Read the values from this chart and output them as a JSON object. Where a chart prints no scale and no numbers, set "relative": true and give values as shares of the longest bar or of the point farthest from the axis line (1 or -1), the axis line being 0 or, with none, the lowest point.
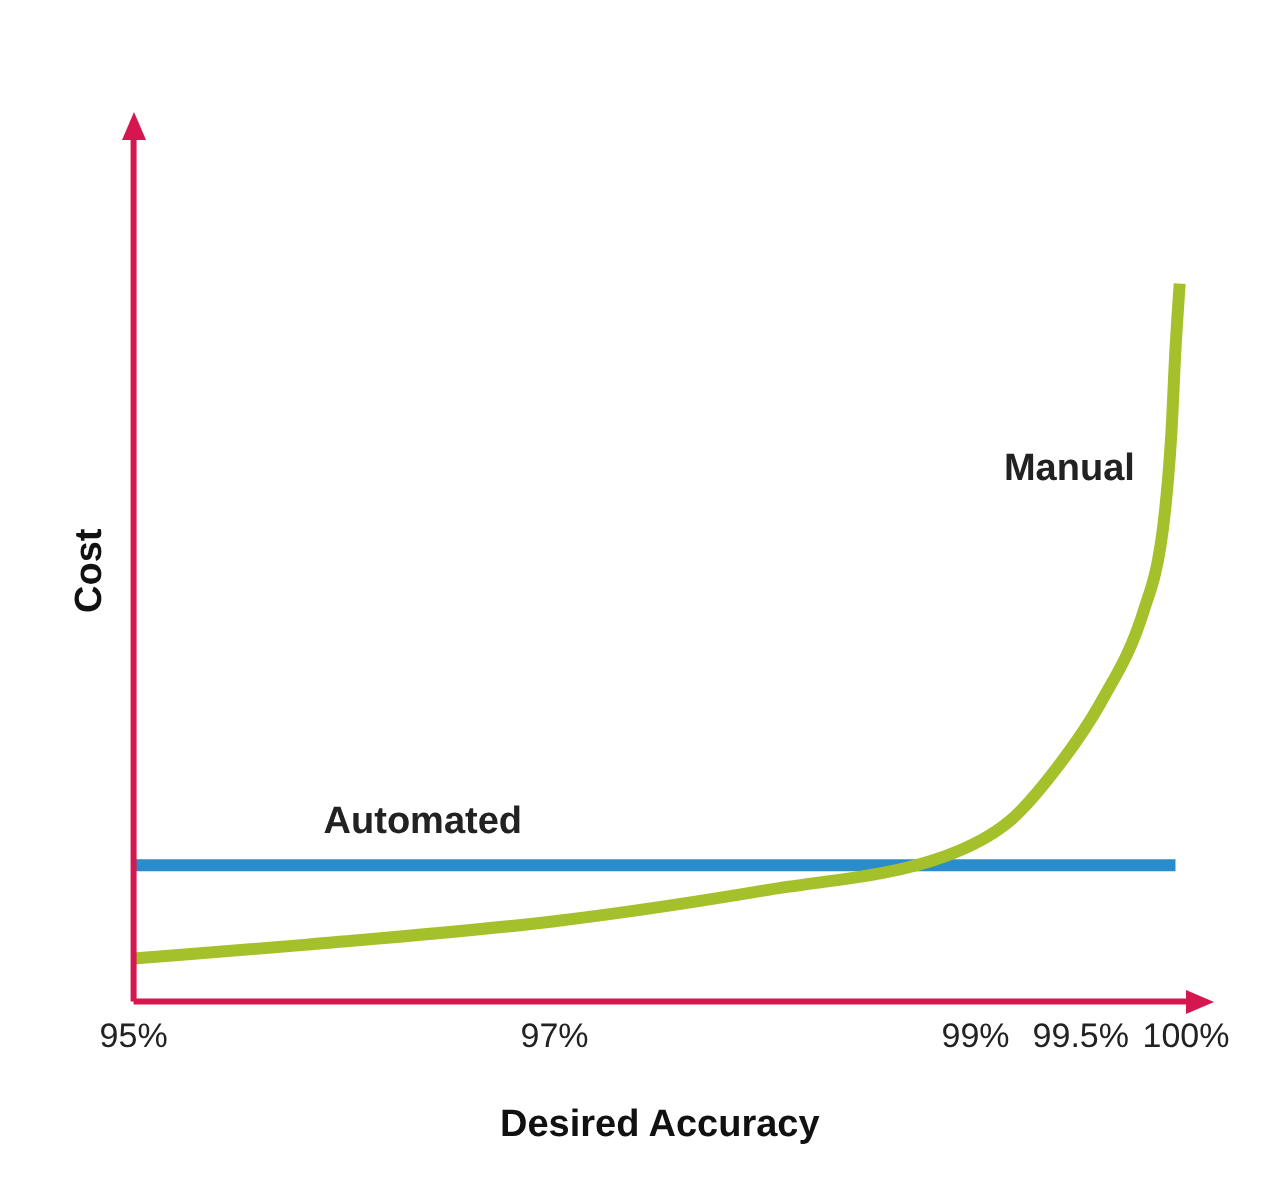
{
  "chart_data": {
    "type": "line",
    "relative": true,
    "xlabel": "Desired Accuracy",
    "ylabel": "Cost",
    "xlim": [
      95,
      100
    ],
    "xticks": [
      {
        "value": 95,
        "label": "95%"
      },
      {
        "value": 97,
        "label": "97%"
      },
      {
        "value": 99,
        "label": "99%"
      },
      {
        "value": 99.5,
        "label": "99.5%"
      },
      {
        "value": 100,
        "label": "100%"
      }
    ],
    "series": [
      {
        "name": "Manual",
        "color": "#a4c02a",
        "x": [
          95.0,
          95.81,
          97.0,
          98.0,
          98.86,
          99.16,
          99.38,
          99.6,
          99.8,
          99.89,
          99.93,
          99.95,
          99.97
        ],
        "values": [
          0.06,
          0.079,
          0.112,
          0.155,
          0.203,
          0.251,
          0.323,
          0.419,
          0.545,
          0.658,
          0.789,
          0.909,
          1.0
        ]
      },
      {
        "name": "Automated",
        "color": "#2b8ccb",
        "x": [
          95.0,
          99.95
        ],
        "values": [
          0.19,
          0.19
        ]
      }
    ],
    "grid": false,
    "legend": false,
    "marker": "none",
    "line_style": "solid"
  }
}
